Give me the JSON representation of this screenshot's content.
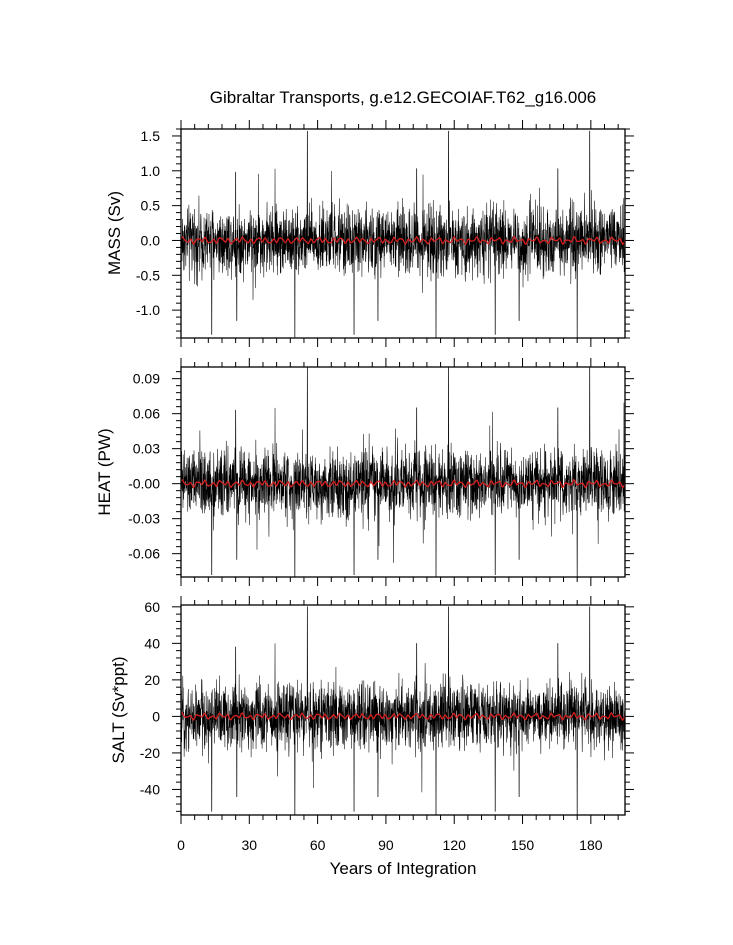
{
  "chart_data": {
    "type": "line",
    "title": "Gibraltar Transports, g.e12.GECOIAF.T62_g16.006",
    "xlabel": "Years of Integration",
    "xlim": [
      0,
      195
    ],
    "xticks": [
      0,
      30,
      60,
      90,
      120,
      150,
      180
    ],
    "xtick_labels": [
      "0",
      "30",
      "60",
      "90",
      "120",
      "150",
      "180"
    ],
    "colors": {
      "raw": "#000000",
      "smoothed": "#d62020"
    },
    "panels": [
      {
        "ylabel": "MASS (Sv)",
        "ylim": [
          -1.4,
          1.6
        ],
        "yticks": [
          -1.0,
          -0.5,
          0.0,
          0.5,
          1.0,
          1.5
        ],
        "ytick_labels": [
          "-1.0",
          "-0.5",
          "0.0",
          "0.5",
          "1.0",
          "1.5"
        ],
        "noise_amp": 0.45,
        "smooth_amp": 0.05,
        "peaks": [
          [
            55.5,
            1.57
          ],
          [
            117.5,
            1.57
          ],
          [
            179.5,
            1.57
          ],
          [
            24,
            0.98
          ],
          [
            41.3,
            1.03
          ],
          [
            86.5,
            0.98
          ],
          [
            103.5,
            1.03
          ],
          [
            148.5,
            0.98
          ],
          [
            165.5,
            1.03
          ]
        ],
        "troughs": [
          [
            50,
            -1.4
          ],
          [
            112,
            -1.4
          ],
          [
            174,
            -1.4
          ],
          [
            13.5,
            -1.35
          ],
          [
            76,
            -1.35
          ],
          [
            138,
            -1.35
          ],
          [
            24.5,
            -1.15
          ],
          [
            86.5,
            -1.15
          ],
          [
            148.5,
            -1.15
          ]
        ]
      },
      {
        "ylabel": "HEAT (PW)",
        "ylim": [
          -0.08,
          0.1
        ],
        "yticks": [
          -0.06,
          -0.03,
          0.0,
          0.03,
          0.06,
          0.09
        ],
        "ytick_labels": [
          "-0.06",
          "-0.03",
          "-0.00",
          "0.03",
          "0.06",
          "0.09"
        ],
        "noise_amp": 0.027,
        "smooth_amp": 0.003,
        "peaks": [
          [
            55.5,
            0.1
          ],
          [
            117.5,
            0.1
          ],
          [
            179.5,
            0.1
          ],
          [
            24,
            0.063
          ],
          [
            41.3,
            0.065
          ],
          [
            86.5,
            0.063
          ],
          [
            103.5,
            0.065
          ],
          [
            148.5,
            0.063
          ],
          [
            165.5,
            0.065
          ]
        ],
        "troughs": [
          [
            50,
            -0.08
          ],
          [
            112,
            -0.08
          ],
          [
            174,
            -0.08
          ],
          [
            13.5,
            -0.078
          ],
          [
            76,
            -0.078
          ],
          [
            138,
            -0.078
          ],
          [
            24.5,
            -0.065
          ],
          [
            86.5,
            -0.065
          ],
          [
            148.5,
            -0.065
          ]
        ]
      },
      {
        "ylabel": "SALT (Sv*ppt)",
        "ylim": [
          -54,
          61
        ],
        "yticks": [
          -40,
          -20,
          0,
          20,
          40,
          60
        ],
        "ytick_labels": [
          "-40",
          "-20",
          "0",
          "20",
          "40",
          "60"
        ],
        "noise_amp": 17,
        "smooth_amp": 1.8,
        "peaks": [
          [
            55.5,
            60
          ],
          [
            117.5,
            60
          ],
          [
            179.5,
            60
          ],
          [
            24,
            38
          ],
          [
            41.3,
            40
          ],
          [
            86.5,
            38
          ],
          [
            103.5,
            40
          ],
          [
            148.5,
            38
          ],
          [
            165.5,
            40
          ]
        ],
        "troughs": [
          [
            50,
            -54
          ],
          [
            112,
            -54
          ],
          [
            174,
            -54
          ],
          [
            13.5,
            -52
          ],
          [
            76,
            -52
          ],
          [
            138,
            -52
          ],
          [
            24.5,
            -44
          ],
          [
            86.5,
            -44
          ],
          [
            148.5,
            -44
          ]
        ]
      }
    ]
  }
}
